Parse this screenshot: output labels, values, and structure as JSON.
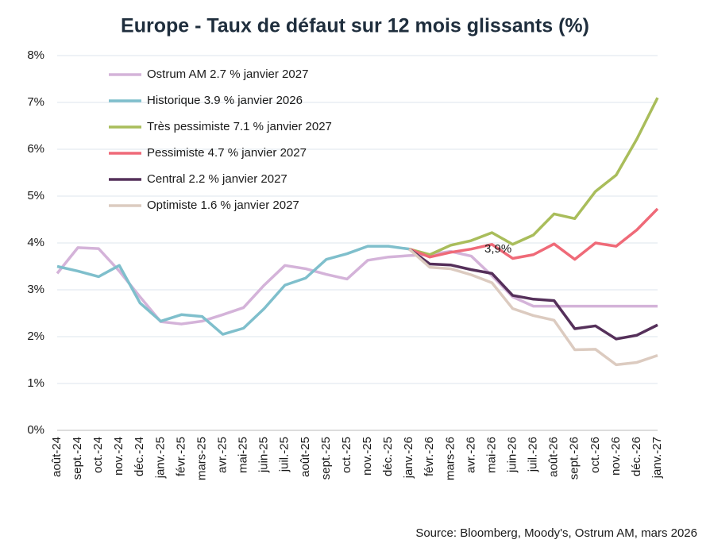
{
  "chart_data": {
    "type": "line",
    "title": "Europe - Taux de défaut sur 12 mois glissants (%)",
    "source": "Source: Bloomberg, Moody's, Ostrum AM, mars 2026",
    "annotation": "3,9%",
    "categories": [
      "août-24",
      "sept.-24",
      "oct.-24",
      "nov.-24",
      "déc.-24",
      "janv.-25",
      "févr.-25",
      "mars-25",
      "avr.-25",
      "mai-25",
      "juin-25",
      "juil.-25",
      "août-25",
      "sept.-25",
      "oct.-25",
      "nov.-25",
      "déc.-25",
      "janv.-26",
      "févr.-26",
      "mars-26",
      "avr.-26",
      "mai-26",
      "juin-26",
      "juil.-26",
      "août-26",
      "sept.-26",
      "oct.-26",
      "nov.-26",
      "déc.-26",
      "janv.-27"
    ],
    "ylim": [
      0,
      8
    ],
    "yticks": [
      {
        "value": 0,
        "label": "0%"
      },
      {
        "value": 1,
        "label": "1%"
      },
      {
        "value": 2,
        "label": "2%"
      },
      {
        "value": 3,
        "label": "3%"
      },
      {
        "value": 4,
        "label": "4%"
      },
      {
        "value": 5,
        "label": "5%"
      },
      {
        "value": 6,
        "label": "6%"
      },
      {
        "value": 7,
        "label": "7%"
      },
      {
        "value": 8,
        "label": "8%"
      }
    ],
    "grid": true,
    "legend": "top-left",
    "series": [
      {
        "name": "Ostrum AM 2.7 % janvier 2027",
        "color": "#d4b3d9",
        "values": [
          3.35,
          3.9,
          3.88,
          3.4,
          2.85,
          2.32,
          2.27,
          2.33,
          2.47,
          2.62,
          3.1,
          3.52,
          3.45,
          3.33,
          3.23,
          3.63,
          3.7,
          3.73,
          3.75,
          3.82,
          3.72,
          3.3,
          2.85,
          2.65,
          2.65,
          2.65,
          2.65,
          2.65,
          2.65,
          2.65
        ]
      },
      {
        "name": "Historique 3.9 % janvier 2026",
        "color": "#7fbfcc",
        "values": [
          3.5,
          3.4,
          3.28,
          3.52,
          2.72,
          2.33,
          2.47,
          2.43,
          2.05,
          2.18,
          2.6,
          3.1,
          3.25,
          3.65,
          3.77,
          3.93,
          3.93,
          3.87,
          null,
          null,
          null,
          null,
          null,
          null,
          null,
          null,
          null,
          null,
          null,
          null
        ]
      },
      {
        "name": "Très pessimiste 7.1 % janvier 2027",
        "color": "#a9bd5b",
        "values": [
          null,
          null,
          null,
          null,
          null,
          null,
          null,
          null,
          null,
          null,
          null,
          null,
          null,
          null,
          null,
          null,
          null,
          3.87,
          3.75,
          3.95,
          4.05,
          4.22,
          3.97,
          4.17,
          4.62,
          4.52,
          5.1,
          5.45,
          6.22,
          7.1
        ]
      },
      {
        "name": "Pessimiste 4.7 % janvier 2027",
        "color": "#ef6a78",
        "values": [
          null,
          null,
          null,
          null,
          null,
          null,
          null,
          null,
          null,
          null,
          null,
          null,
          null,
          null,
          null,
          null,
          null,
          3.87,
          3.7,
          3.8,
          3.87,
          3.97,
          3.67,
          3.75,
          3.98,
          3.65,
          4.0,
          3.93,
          4.28,
          4.73
        ]
      },
      {
        "name": "Central 2.2 % janvier 2027",
        "color": "#55305a",
        "values": [
          null,
          null,
          null,
          null,
          null,
          null,
          null,
          null,
          null,
          null,
          null,
          null,
          null,
          null,
          null,
          null,
          null,
          3.87,
          3.55,
          3.53,
          3.43,
          3.35,
          2.88,
          2.8,
          2.77,
          2.17,
          2.23,
          1.95,
          2.03,
          2.25
        ]
      },
      {
        "name": "Optimiste 1.6 % janvier 2027",
        "color": "#dccbc0",
        "values": [
          null,
          null,
          null,
          null,
          null,
          null,
          null,
          null,
          null,
          null,
          null,
          null,
          null,
          null,
          null,
          null,
          null,
          3.87,
          3.48,
          3.45,
          3.32,
          3.15,
          2.6,
          2.45,
          2.35,
          1.72,
          1.73,
          1.4,
          1.45,
          1.6
        ]
      }
    ]
  }
}
